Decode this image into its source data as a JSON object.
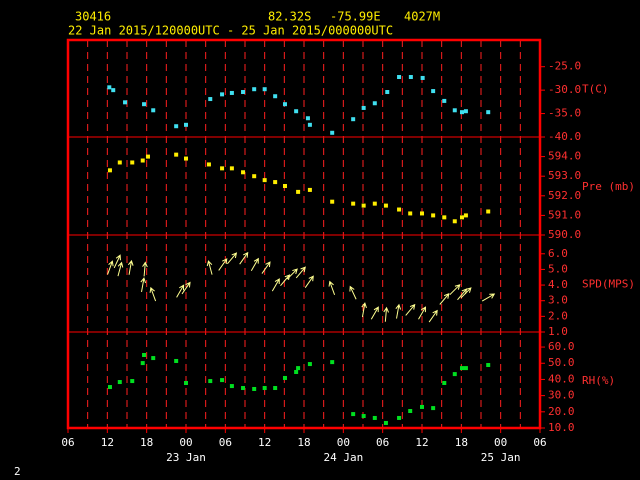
{
  "header": {
    "station": "30416",
    "lat": "82.32S",
    "lon": "-75.99E",
    "elev": "4027M",
    "period": "22 Jan 2015/120000UTC - 25 Jan 2015/000000UTC",
    "page": "2"
  },
  "chart_data": [
    {
      "type": "scatter",
      "y_label": "T(C)",
      "color": "#40e0f0",
      "x": [
        6.3,
        6.9,
        8.7,
        11.6,
        13.0,
        16.5,
        18.0,
        21.7,
        23.5,
        25.0,
        26.7,
        28.4,
        30.0,
        31.6,
        33.1,
        34.8,
        36.6,
        36.9,
        40.3,
        43.5,
        45.1,
        46.8,
        48.7,
        50.5,
        52.3,
        54.1,
        55.7,
        57.4,
        59.0,
        60.1,
        60.7,
        64.1
      ],
      "values": [
        -29.4,
        -30.0,
        -32.6,
        -33.0,
        -34.3,
        -37.7,
        -37.4,
        -31.9,
        -30.9,
        -30.6,
        -30.4,
        -29.8,
        -29.8,
        -31.3,
        -33.0,
        -34.5,
        -36.0,
        -37.4,
        -39.1,
        -36.2,
        -33.8,
        -32.8,
        -30.4,
        -27.2,
        -27.2,
        -27.4,
        -30.2,
        -32.3,
        -34.3,
        -34.7,
        -34.5,
        -34.7
      ],
      "ylim": [
        -40,
        -19.3
      ],
      "yticks": [
        {
          "value": -40,
          "label": "-40.0"
        },
        {
          "value": -35,
          "label": "-35.0"
        },
        {
          "value": -30,
          "label": "-30.0"
        },
        {
          "value": -25,
          "label": "-25.0"
        }
      ]
    },
    {
      "type": "scatter",
      "y_label": "Pre (mb)",
      "color": "#ffee00",
      "x": [
        6.4,
        7.9,
        9.8,
        11.4,
        12.2,
        16.5,
        18.0,
        21.5,
        23.5,
        25.0,
        26.7,
        28.4,
        30.0,
        31.6,
        33.1,
        35.1,
        36.9,
        40.3,
        43.5,
        45.1,
        46.8,
        48.5,
        50.5,
        52.2,
        54.0,
        55.7,
        57.4,
        59.0,
        60.1,
        60.7,
        64.1
      ],
      "values": [
        593.3,
        593.7,
        593.7,
        593.8,
        594.0,
        594.1,
        593.9,
        593.6,
        593.4,
        593.4,
        593.2,
        593.0,
        592.8,
        592.7,
        592.5,
        592.2,
        592.3,
        591.7,
        591.6,
        591.5,
        591.6,
        591.5,
        591.3,
        591.1,
        591.1,
        591.0,
        590.9,
        590.7,
        590.9,
        591.0,
        591.2
      ],
      "ylim": [
        590,
        595
      ],
      "yticks": [
        {
          "value": 590,
          "label": "590.0"
        },
        {
          "value": 591,
          "label": "591.0"
        },
        {
          "value": 592,
          "label": "592.0"
        },
        {
          "value": 593,
          "label": "593.0"
        },
        {
          "value": 594,
          "label": "594.0"
        }
      ]
    },
    {
      "type": "vector",
      "y_label": "SPD(MPS)",
      "color": "#ffff90",
      "x": [
        6.4,
        7.5,
        7.9,
        9.5,
        11.7,
        11.4,
        13.0,
        17.1,
        18.0,
        21.7,
        23.6,
        25.0,
        26.8,
        28.5,
        30.2,
        31.7,
        33.1,
        34.2,
        35.5,
        36.8,
        40.3,
        43.5,
        45.1,
        46.8,
        48.5,
        50.3,
        52.2,
        54.0,
        55.7,
        57.4,
        59.0,
        60.1,
        60.7,
        64.1
      ],
      "values": [
        5.1,
        5.5,
        5.0,
        5.1,
        5.0,
        4.0,
        3.4,
        3.6,
        3.8,
        5.1,
        5.3,
        5.7,
        5.7,
        5.3,
        5.1,
        4.0,
        4.3,
        4.7,
        4.8,
        4.2,
        3.8,
        3.5,
        2.4,
        2.2,
        2.1,
        2.3,
        2.4,
        2.2,
        2.0,
        3.1,
        3.7,
        3.4,
        3.5,
        3.2
      ],
      "directions": [
        20,
        25,
        15,
        10,
        5,
        10,
        340,
        30,
        35,
        345,
        35,
        40,
        35,
        30,
        35,
        30,
        40,
        45,
        40,
        35,
        340,
        335,
        10,
        30,
        5,
        10,
        40,
        30,
        35,
        40,
        45,
        40,
        45,
        60
      ],
      "ylim": [
        1,
        7.2
      ],
      "yticks": [
        {
          "value": 1,
          "label": "1.0"
        },
        {
          "value": 2,
          "label": "2.0"
        },
        {
          "value": 3,
          "label": "3.0"
        },
        {
          "value": 4,
          "label": "4.0"
        },
        {
          "value": 5,
          "label": "5.0"
        },
        {
          "value": 6,
          "label": "6.0"
        }
      ]
    },
    {
      "type": "scatter",
      "y_label": "RH(%)",
      "color": "#00e020",
      "x": [
        6.4,
        7.9,
        9.8,
        11.4,
        11.6,
        13.0,
        16.5,
        18.0,
        21.7,
        23.5,
        25.0,
        26.7,
        28.4,
        30.0,
        31.6,
        33.1,
        34.8,
        35.1,
        36.9,
        40.3,
        43.5,
        45.1,
        46.8,
        48.5,
        50.5,
        52.2,
        54.0,
        55.7,
        57.4,
        59.0,
        60.1,
        60.7,
        64.1
      ],
      "values": [
        35.3,
        38.4,
        39.0,
        50.1,
        55.1,
        53.2,
        51.4,
        37.8,
        39.0,
        39.6,
        35.9,
        34.7,
        34.1,
        34.7,
        34.7,
        40.9,
        44.6,
        47.0,
        49.5,
        50.7,
        18.6,
        17.4,
        16.2,
        13.1,
        16.2,
        20.5,
        23.0,
        22.3,
        37.8,
        43.3,
        47.0,
        47.0,
        48.9
      ],
      "ylim": [
        10,
        69.3
      ],
      "yticks": [
        {
          "value": 10,
          "label": "10.0"
        },
        {
          "value": 20,
          "label": "20.0"
        },
        {
          "value": 30,
          "label": "30.0"
        },
        {
          "value": 40,
          "label": "40.0"
        },
        {
          "value": 50,
          "label": "50.0"
        },
        {
          "value": 60,
          "label": "60.0"
        }
      ],
      "xlim": [
        0,
        72
      ],
      "xticks": [
        {
          "value": 0,
          "label": "06"
        },
        {
          "value": 6,
          "label": "12"
        },
        {
          "value": 12,
          "label": "18"
        },
        {
          "value": 18,
          "label": "00"
        },
        {
          "value": 24,
          "label": "06"
        },
        {
          "value": 30,
          "label": "12"
        },
        {
          "value": 36,
          "label": "18"
        },
        {
          "value": 42,
          "label": "00"
        },
        {
          "value": 48,
          "label": "06"
        },
        {
          "value": 54,
          "label": "12"
        },
        {
          "value": 60,
          "label": "18"
        },
        {
          "value": 66,
          "label": "00"
        },
        {
          "value": 72,
          "label": "06"
        }
      ],
      "annotations": [
        {
          "x": 18,
          "text": "23 Jan"
        },
        {
          "x": 42,
          "text": "24 Jan"
        },
        {
          "x": 66,
          "text": "25 Jan"
        }
      ]
    }
  ]
}
